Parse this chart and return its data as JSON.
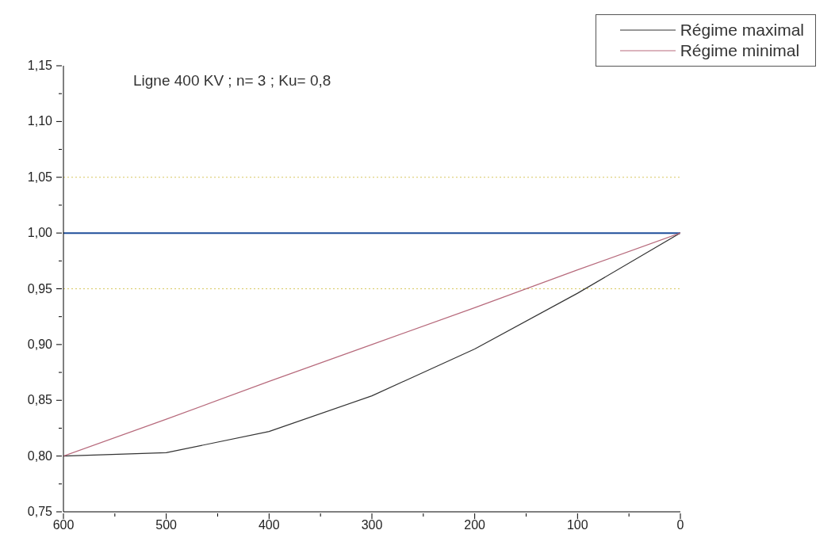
{
  "chart_data": {
    "type": "line",
    "title": "Ligne 400 KV ; n= 3 ; Ku= 0,8",
    "x": [
      600,
      500,
      400,
      300,
      200,
      100,
      0
    ],
    "series": [
      {
        "name": "Régime maximal",
        "color": "#333333",
        "values": [
          0.8,
          0.803,
          0.822,
          0.854,
          0.896,
          0.946,
          1.0
        ]
      },
      {
        "name": "Régime minimal",
        "color": "#b76a7c",
        "values": [
          0.8,
          0.833,
          0.867,
          0.9,
          0.933,
          0.967,
          1.0
        ]
      }
    ],
    "xlim": [
      600,
      0
    ],
    "xticks": [
      600,
      {
        "value": 550,
        "label": null
      },
      500,
      {
        "value": 450,
        "label": null
      },
      400,
      {
        "value": 350,
        "label": null
      },
      300,
      {
        "value": 250,
        "label": null
      },
      200,
      {
        "value": 150,
        "label": null
      },
      100,
      {
        "value": 50,
        "label": null
      },
      0
    ],
    "ylim": [
      0.75,
      1.15
    ],
    "yticks": [
      {
        "value": 0.75,
        "label": "0,75"
      },
      {
        "value": 0.775,
        "label": null
      },
      {
        "value": 0.8,
        "label": "0,80"
      },
      {
        "value": 0.825,
        "label": null
      },
      {
        "value": 0.85,
        "label": "0,85"
      },
      {
        "value": 0.875,
        "label": null
      },
      {
        "value": 0.9,
        "label": "0,90"
      },
      {
        "value": 0.925,
        "label": null
      },
      {
        "value": 0.95,
        "label": "0,95"
      },
      {
        "value": 0.975,
        "label": null
      },
      {
        "value": 1.0,
        "label": "1,00"
      },
      {
        "value": 1.025,
        "label": null
      },
      {
        "value": 1.05,
        "label": "1,05"
      },
      {
        "value": 1.075,
        "label": null
      },
      {
        "value": 1.1,
        "label": "1,10"
      },
      {
        "value": 1.125,
        "label": null
      },
      {
        "value": 1.15,
        "label": "1,15"
      }
    ],
    "ref_lines": [
      {
        "axis": "y",
        "value": 1.0,
        "color": "#1f4e9a",
        "line_style": "solid"
      },
      {
        "axis": "y",
        "value": 1.05,
        "color": "#d8c860",
        "line_style": "dotted"
      },
      {
        "axis": "y",
        "value": 0.95,
        "color": "#d8c860",
        "line_style": "dotted"
      }
    ],
    "legend": "top right",
    "marker": "none",
    "line_style": "solid"
  }
}
